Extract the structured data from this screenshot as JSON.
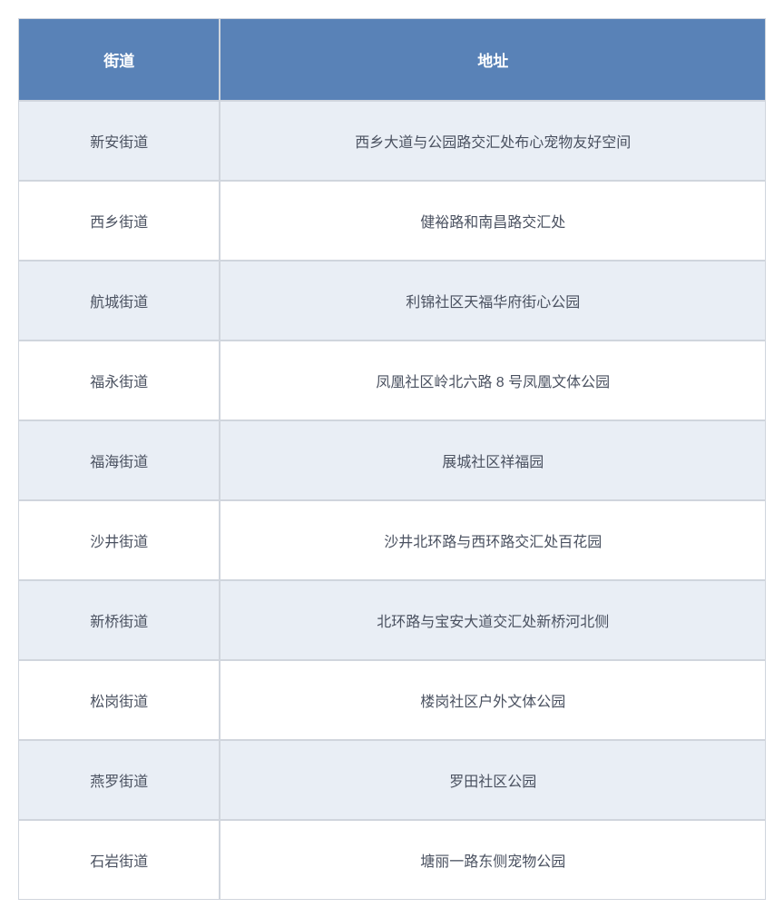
{
  "table": {
    "type": "table",
    "header_bg_color": "#5982b7",
    "header_text_color": "#ffffff",
    "row_odd_bg_color": "#e9eef5",
    "row_even_bg_color": "#ffffff",
    "cell_text_color": "#4a5160",
    "border_color": "#d0d5dd",
    "header_fontsize": 17,
    "cell_fontsize": 16,
    "col_widths": [
      "27%",
      "73%"
    ],
    "columns": [
      "街道",
      "地址"
    ],
    "rows": [
      [
        "新安街道",
        "西乡大道与公园路交汇处布心宠物友好空间"
      ],
      [
        "西乡街道",
        "健裕路和南昌路交汇处"
      ],
      [
        "航城街道",
        "利锦社区天福华府街心公园"
      ],
      [
        "福永街道",
        "凤凰社区岭北六路 8 号凤凰文体公园"
      ],
      [
        "福海街道",
        "展城社区祥福园"
      ],
      [
        "沙井街道",
        "沙井北环路与西环路交汇处百花园"
      ],
      [
        "新桥街道",
        "北环路与宝安大道交汇处新桥河北侧"
      ],
      [
        "松岗街道",
        "楼岗社区户外文体公园"
      ],
      [
        "燕罗街道",
        "罗田社区公园"
      ],
      [
        "石岩街道",
        "塘丽一路东侧宠物公园"
      ]
    ]
  }
}
